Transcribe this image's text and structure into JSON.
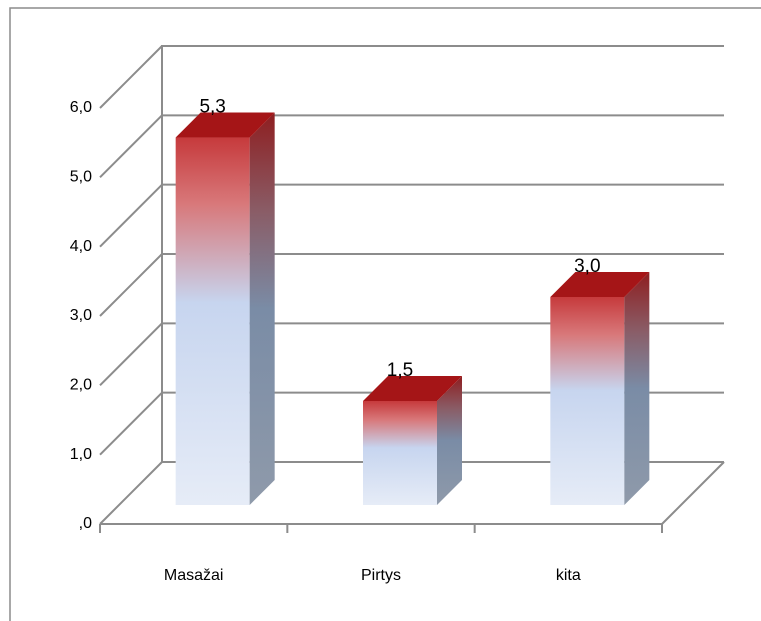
{
  "chart_data": {
    "type": "bar",
    "categories": [
      "Masažai",
      "Pirtys",
      "kita"
    ],
    "values": [
      5.3,
      1.5,
      3.0
    ],
    "value_labels": [
      "5,3",
      "1,5",
      "3,0"
    ],
    "ylim": [
      0,
      6
    ],
    "yticks": [
      {
        "value": 0,
        "label": ",0"
      },
      {
        "value": 1,
        "label": "1,0"
      },
      {
        "value": 2,
        "label": "2,0"
      },
      {
        "value": 3,
        "label": "3,0"
      },
      {
        "value": 4,
        "label": "4,0"
      },
      {
        "value": 5,
        "label": "5,0"
      },
      {
        "value": 6,
        "label": "6,0"
      }
    ],
    "grid": true,
    "color": "#c0393b"
  }
}
